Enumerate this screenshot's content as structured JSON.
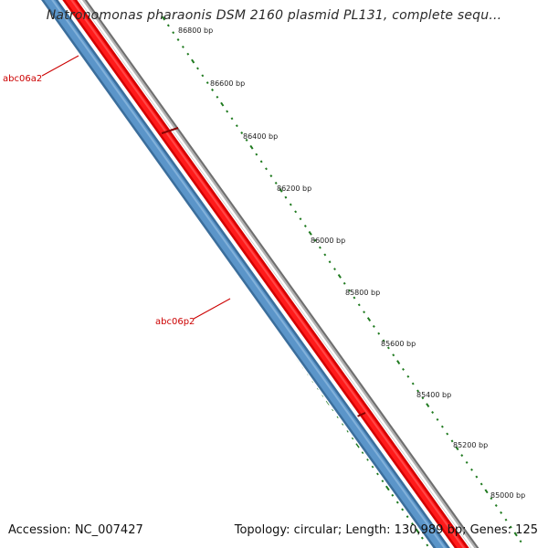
{
  "title": "Natronomonas pharaonis DSM 2160 plasmid PL131, complete sequ...",
  "accession": "Accession: NC_007427",
  "summary": "Topology: circular; Length: 130,989 bp; Genes: 125",
  "colors": {
    "forward_strand": "#e60000",
    "reverse_strand": "#4682b4",
    "backbone": "#808080",
    "ticks": "#1f7a1f",
    "gene_label": "#cc0000"
  },
  "scale": {
    "unit": "bp",
    "labels": [
      "86800 bp",
      "86600 bp",
      "86400 bp",
      "86200 bp",
      "86000 bp",
      "85800 bp",
      "85600 bp",
      "85400 bp",
      "85200 bp",
      "85000 bp"
    ]
  },
  "genes": [
    {
      "name": "abc06a2",
      "strand": "reverse"
    },
    {
      "name": "abc06p2",
      "strand": "reverse"
    }
  ]
}
